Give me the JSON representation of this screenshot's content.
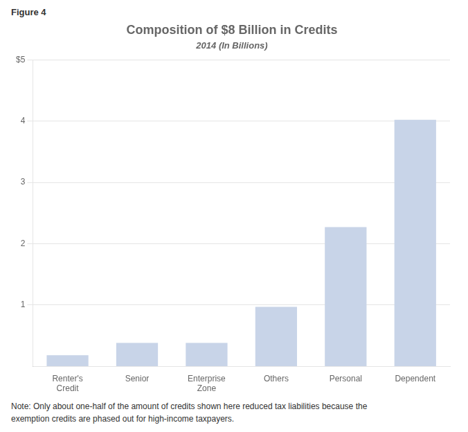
{
  "chart_data": {
    "type": "bar",
    "title": "Composition of $8 Billion in Credits",
    "subtitle": "2014 (In Billions)",
    "annotations": [
      "Figure 4",
      "Note: Only about one-half of the amount of credits shown here reduced tax liabilities because the\nexemption credits are phased out for high-income taxpayers."
    ],
    "categories": [
      "Renter's\nCredit",
      "Senior",
      "Enterprise\nZone",
      "Others",
      "Personal",
      "Dependent"
    ],
    "values": [
      0.18,
      0.38,
      0.38,
      0.97,
      2.27,
      4.02
    ],
    "color": "#c8d4e8",
    "ylim": [
      0,
      5
    ],
    "yticks": [
      1,
      2,
      3,
      4,
      {
        "value": 5,
        "label": "$5"
      }
    ],
    "grid": true
  }
}
